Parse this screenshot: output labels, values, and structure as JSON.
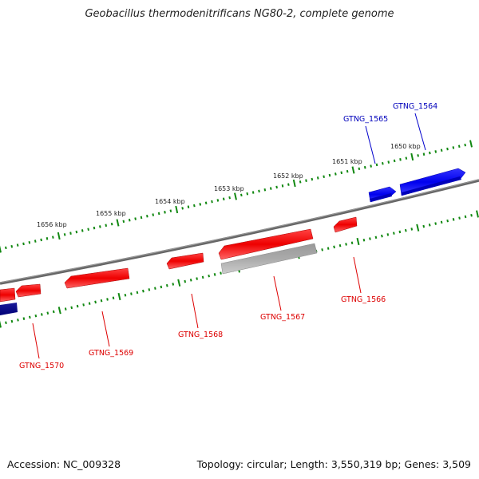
{
  "title": "Geobacillus thermodenitrificans NG80-2, complete genome",
  "footer": {
    "accession": "Accession: NC_009328",
    "summary": "Topology: circular; Length: 3,550,319 bp; Genes: 3,509"
  },
  "colors": {
    "plus_strand": "#0000ee",
    "minus_strand": "#ee0000",
    "pseudo": "#aaaaaa",
    "ticks": "#118811",
    "backbone": "#777777"
  },
  "scale": {
    "unit": "kbp",
    "labels": [
      "1650 kbp",
      "1651 kbp",
      "1652 kbp",
      "1653 kbp",
      "1654 kbp",
      "1655 kbp",
      "1656 kbp"
    ]
  },
  "genes": [
    {
      "id": "GTNG_1564",
      "label": "GTNG_1564",
      "strand": "+"
    },
    {
      "id": "GTNG_1565",
      "label": "GTNG_1565",
      "strand": "+"
    },
    {
      "id": "GTNG_1566",
      "label": "GTNG_1566",
      "strand": "-"
    },
    {
      "id": "GTNG_1567",
      "label": "GTNG_1567",
      "strand": "-"
    },
    {
      "id": "GTNG_1568",
      "label": "GTNG_1568",
      "strand": "-"
    },
    {
      "id": "GTNG_1569",
      "label": "GTNG_1569",
      "strand": "-"
    },
    {
      "id": "GTNG_1570",
      "label": "GTNG_1570",
      "strand": "-"
    }
  ]
}
